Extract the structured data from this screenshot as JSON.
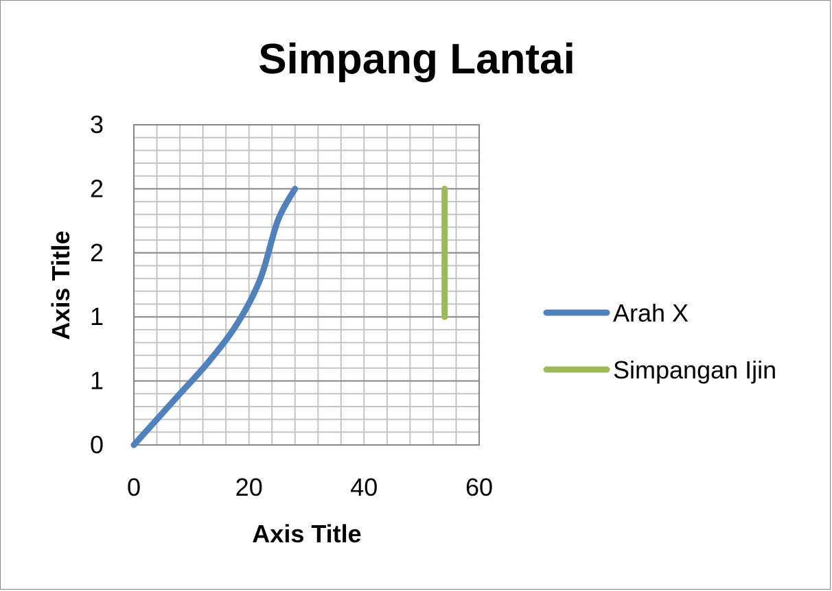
{
  "chart_data": {
    "type": "line",
    "title": "Simpang Lantai",
    "xlabel": "Axis Title",
    "ylabel": "Axis Title",
    "xlim": [
      0,
      60
    ],
    "ylim": [
      0,
      2.5
    ],
    "x_ticks": [
      0,
      20,
      40,
      60
    ],
    "y_ticks": [
      0,
      0.5,
      1,
      1.5,
      2,
      2.5
    ],
    "y_tick_labels": [
      "0",
      "1",
      "1",
      "2",
      "2",
      "3"
    ],
    "grid": true,
    "legend": "right",
    "series": [
      {
        "name": "Arah X",
        "color": "#4f81bd",
        "smooth": true,
        "points": [
          [
            0,
            0
          ],
          [
            7,
            0.35
          ],
          [
            13,
            0.65
          ],
          [
            18,
            0.95
          ],
          [
            22,
            1.3
          ],
          [
            25,
            1.75
          ],
          [
            28,
            2.0
          ]
        ]
      },
      {
        "name": "Simpangan Ijin",
        "color": "#9bbb59",
        "smooth": false,
        "points": [
          [
            54,
            1.0
          ],
          [
            54,
            2.0
          ]
        ]
      }
    ]
  }
}
